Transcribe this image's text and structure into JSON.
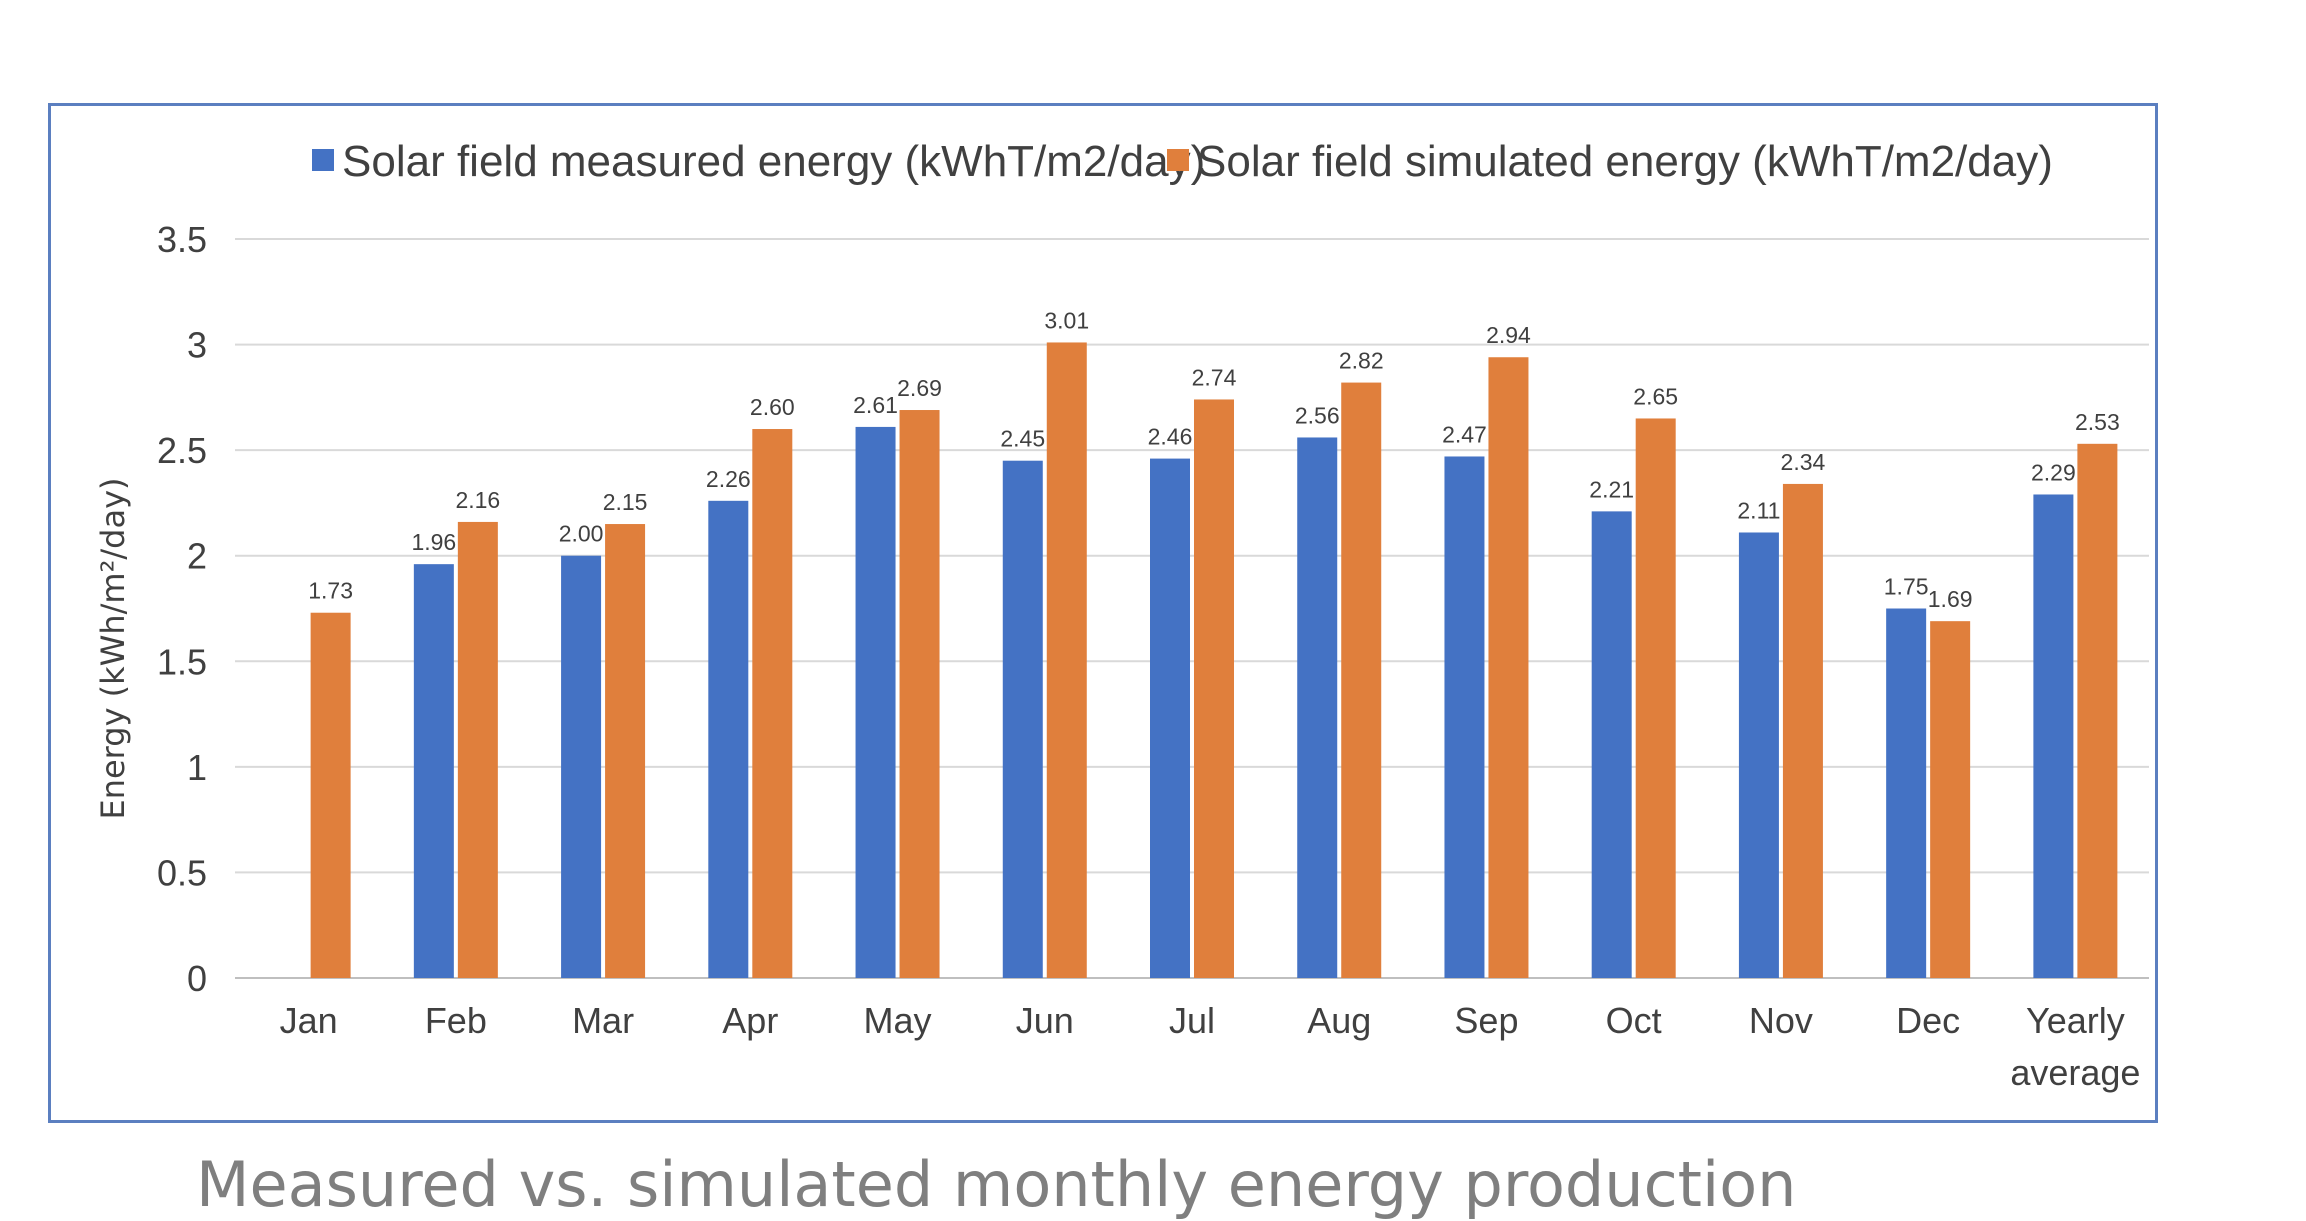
{
  "caption": "Measured vs. simulated monthly energy production",
  "chart_data": {
    "type": "bar",
    "title": "",
    "xlabel": "",
    "ylabel": "Energy (kWh/m²/day)",
    "ylim": [
      0,
      3.5
    ],
    "yticks": [
      0,
      0.5,
      1,
      1.5,
      2,
      2.5,
      3,
      3.5
    ],
    "ytick_labels": [
      "0",
      "0.5",
      "1",
      "1.5",
      "2",
      "2.5",
      "3",
      "3.5"
    ],
    "grid": true,
    "legend": "top",
    "categories": [
      "Jan",
      "Feb",
      "Mar",
      "Apr",
      "May",
      "Jun",
      "Jul",
      "Aug",
      "Sep",
      "Oct",
      "Nov",
      "Dec",
      "Yearly average"
    ],
    "series": [
      {
        "name": "Solar field measured energy (kWhT/m2/day)",
        "color": "#4472c4",
        "values": [
          null,
          1.96,
          2.0,
          2.26,
          2.61,
          2.45,
          2.46,
          2.56,
          2.47,
          2.21,
          2.11,
          1.75,
          2.29
        ],
        "labels": [
          "",
          "1.96",
          "2.00",
          "2.26",
          "2.61",
          "2.45",
          "2.46",
          "2.56",
          "2.47",
          "2.21",
          "2.11",
          "1.75",
          "2.29"
        ]
      },
      {
        "name": "Solar field simulated energy (kWhT/m2/day)",
        "color": "#e07f3c",
        "values": [
          1.73,
          2.16,
          2.15,
          2.6,
          2.69,
          3.01,
          2.74,
          2.82,
          2.94,
          2.65,
          2.34,
          1.69,
          2.53
        ],
        "labels": [
          "1.73",
          "2.16",
          "2.15",
          "2.60",
          "2.69",
          "3.01",
          "2.74",
          "2.82",
          "2.94",
          "2.65",
          "2.34",
          "1.69",
          "2.53"
        ]
      }
    ]
  }
}
